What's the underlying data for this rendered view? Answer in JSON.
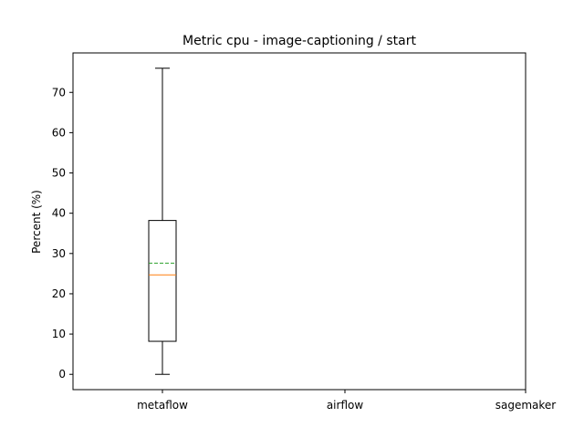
{
  "chart_data": {
    "type": "box",
    "title": "Metric cpu - image-captioning / start",
    "xlabel": "",
    "ylabel": "Percent (%)",
    "categories": [
      "metaflow",
      "airflow",
      "sagemaker"
    ],
    "ylim": [
      -3.8,
      79.8
    ],
    "yticks": [
      0,
      10,
      20,
      30,
      40,
      50,
      60,
      70
    ],
    "boxes": [
      {
        "category": "metaflow",
        "whisker_low": 0,
        "q1": 8.2,
        "median": 24.7,
        "mean": 27.6,
        "q3": 38.2,
        "whisker_high": 76
      }
    ],
    "colors": {
      "median": "#ff7f0e",
      "mean": "#2ca02c",
      "box": "#000000"
    },
    "grid": false,
    "legend": "none"
  }
}
